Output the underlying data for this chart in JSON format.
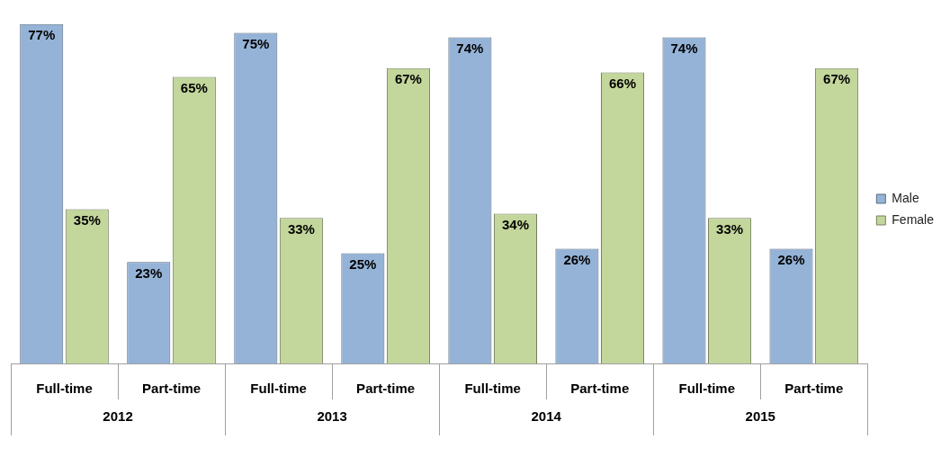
{
  "chart_data": {
    "type": "bar",
    "categories": [
      "Full-time",
      "Part-time",
      "Full-time",
      "Part-time",
      "Full-time",
      "Part-time",
      "Full-time",
      "Part-time"
    ],
    "annotations": [
      "2012",
      "2013",
      "2014",
      "2015"
    ],
    "series": [
      {
        "name": "Male",
        "color": "#95b3d7",
        "values": [
          77,
          23,
          75,
          25,
          74,
          26,
          74,
          26
        ],
        "value_labels": [
          "77%",
          "23%",
          "75%",
          "25%",
          "74%",
          "26%",
          "74%",
          "26%"
        ]
      },
      {
        "name": "Female",
        "color": "#c3d69b",
        "values": [
          35,
          65,
          33,
          67,
          34,
          66,
          33,
          67
        ],
        "value_labels": [
          "35%",
          "65%",
          "33%",
          "67%",
          "34%",
          "66%",
          "33%",
          "67%"
        ]
      }
    ],
    "legend": "right"
  }
}
